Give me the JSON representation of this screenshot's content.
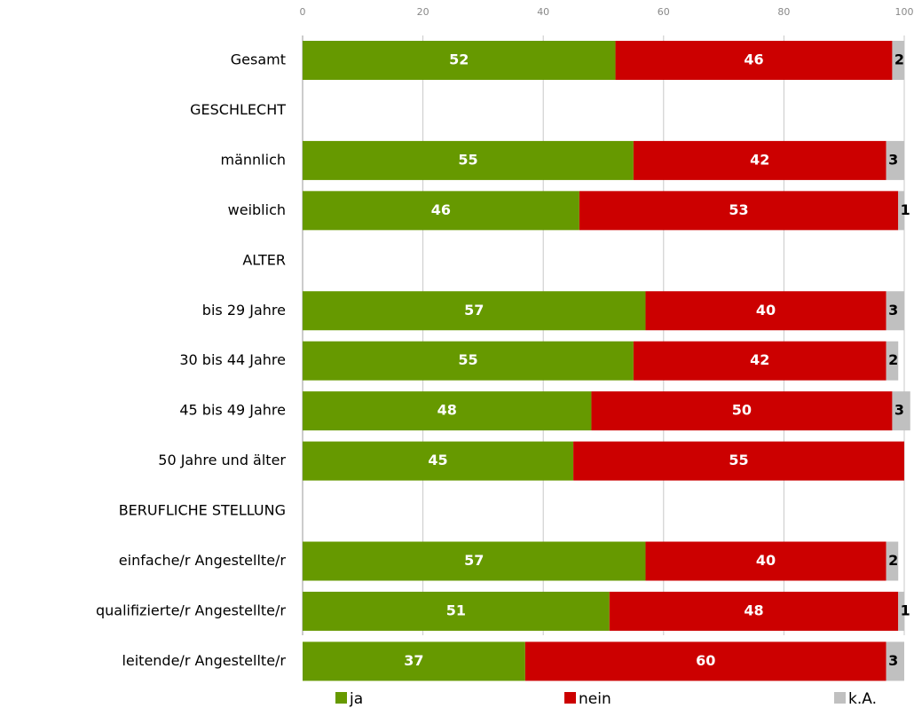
{
  "chart_data": {
    "type": "stacked_barh",
    "categories": [
      "Gesamt",
      "GESCHLECHT",
      "männlich",
      "weiblich",
      "ALTER",
      "bis 29 Jahre",
      "30 bis 44 Jahre",
      "45 bis 49 Jahre",
      "50 Jahre und älter",
      "BERUFLICHE STELLUNG",
      "einfache/r Angestellte/r",
      "qualifizierte/r Angestellte/r",
      "leitende/r Angestellte/r"
    ],
    "series": [
      {
        "name": "ja",
        "color": "#669900",
        "values": [
          52,
          null,
          55,
          46,
          null,
          57,
          55,
          48,
          45,
          null,
          57,
          51,
          37
        ]
      },
      {
        "name": "nein",
        "color": "#cc0000",
        "values": [
          46,
          null,
          42,
          53,
          null,
          40,
          42,
          50,
          55,
          null,
          40,
          48,
          60
        ]
      },
      {
        "name": "k.A.",
        "color": "#c0c0c0",
        "values": [
          2,
          null,
          3,
          1,
          null,
          3,
          2,
          3,
          null,
          null,
          2,
          1,
          3
        ]
      }
    ],
    "xlim": [
      0,
      100
    ],
    "xticks": [
      0,
      20,
      40,
      60,
      80,
      100
    ],
    "grid": true,
    "legend": "bottom"
  }
}
